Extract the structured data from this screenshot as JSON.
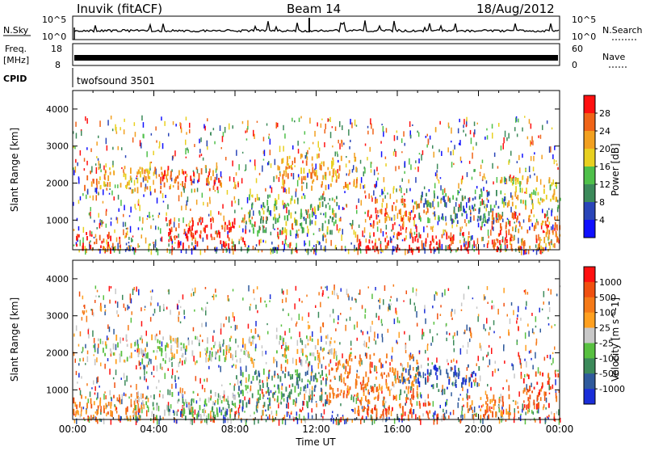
{
  "header": {
    "station": "Inuvik (fitACF)",
    "beam": "Beam 14",
    "date": "18/Aug/2012"
  },
  "panels": {
    "nsky": {
      "label": "N.Sky",
      "tick_top": "10^5",
      "tick_bottom": "10^0",
      "right_label": "N.Search",
      "right_tick_top": "10^5",
      "right_tick_bottom": "10^0"
    },
    "freq": {
      "label_line1": "Freq.",
      "label_line2": "[MHz]",
      "tick_top": "18",
      "tick_bottom": "8",
      "right_label": "Nave",
      "right_tick_top": "60",
      "right_tick_bottom": "0"
    },
    "cpid": {
      "label": "CPID",
      "mode": "twofsound 3501"
    }
  },
  "chart_data": [
    {
      "type": "heatmap",
      "name": "Power",
      "ylabel": "Slant Range [km]",
      "xlabel": "",
      "yticks": [
        "1000",
        "2000",
        "3000",
        "4000"
      ],
      "ylim": [
        200,
        4500
      ],
      "xlim": [
        "00:00",
        "24:00"
      ],
      "colorbar": {
        "label": "Power [dB]",
        "ticks": [
          "4",
          "8",
          "12",
          "16",
          "20",
          "24",
          "28"
        ],
        "colors": [
          "#1010ff",
          "#2a45b8",
          "#3c8a5a",
          "#4fc04a",
          "#e8d020",
          "#f2a020",
          "#f06418",
          "#ff1010"
        ]
      },
      "regions": [
        {
          "t0": 0.0,
          "t1": 2.5,
          "r0": 250,
          "r1": 700,
          "level": 7
        },
        {
          "t0": 0.5,
          "t1": 4.0,
          "r0": 1800,
          "r1": 2500,
          "level": 5
        },
        {
          "t0": 4.5,
          "t1": 8.5,
          "r0": 300,
          "r1": 1100,
          "level": 7
        },
        {
          "t0": 4.0,
          "t1": 7.5,
          "r0": 1800,
          "r1": 2500,
          "level": 6
        },
        {
          "t0": 8.5,
          "t1": 13.0,
          "r0": 700,
          "r1": 1700,
          "level": 3
        },
        {
          "t0": 10.0,
          "t1": 14.0,
          "r0": 1900,
          "r1": 2800,
          "level": 5
        },
        {
          "t0": 14.0,
          "t1": 19.5,
          "r0": 250,
          "r1": 700,
          "level": 7
        },
        {
          "t0": 14.5,
          "t1": 17.5,
          "r0": 900,
          "r1": 1600,
          "level": 6
        },
        {
          "t0": 17.0,
          "t1": 21.0,
          "r0": 1000,
          "r1": 1900,
          "level": 2
        },
        {
          "t0": 20.5,
          "t1": 24.0,
          "r0": 300,
          "r1": 1300,
          "level": 6
        },
        {
          "t0": 21.0,
          "t1": 24.0,
          "r0": 1400,
          "r1": 2200,
          "level": 4
        }
      ]
    },
    {
      "type": "heatmap",
      "name": "Velocity",
      "ylabel": "Slant Range [km]",
      "xlabel": "Time UT",
      "yticks": [
        "1000",
        "2000",
        "3000",
        "4000"
      ],
      "ylim": [
        200,
        4500
      ],
      "xlim": [
        "00:00",
        "24:00"
      ],
      "xticks": [
        "00:00",
        "04:00",
        "08:00",
        "12:00",
        "16:00",
        "20:00",
        "00:00"
      ],
      "colorbar": {
        "label": "Velocity [m s^-1]",
        "ticks": [
          "1000",
          "500",
          "100",
          "25",
          "-25",
          "-100",
          "-500",
          "-1000"
        ],
        "colors": [
          "#1a2ed8",
          "#2f5a9c",
          "#3c8a5a",
          "#58c040",
          "#c8c8c8",
          "#ffa020",
          "#f57a18",
          "#f05010",
          "#ff1010"
        ]
      },
      "regions": [
        {
          "t0": 0.0,
          "t1": 3.5,
          "r0": 250,
          "r1": 900,
          "level": 6
        },
        {
          "t0": 1.0,
          "t1": 9.0,
          "r0": 1800,
          "r1": 2500,
          "level": 4
        },
        {
          "t0": 3.0,
          "t1": 8.0,
          "r0": 300,
          "r1": 1000,
          "level": 3
        },
        {
          "t0": 8.0,
          "t1": 12.5,
          "r0": 600,
          "r1": 1600,
          "level": 2
        },
        {
          "t0": 10.0,
          "t1": 13.0,
          "r0": 1800,
          "r1": 2500,
          "level": 4
        },
        {
          "t0": 12.5,
          "t1": 17.0,
          "r0": 700,
          "r1": 2000,
          "level": 6
        },
        {
          "t0": 14.0,
          "t1": 18.0,
          "r0": 300,
          "r1": 700,
          "level": 7
        },
        {
          "t0": 16.0,
          "t1": 20.0,
          "r0": 1000,
          "r1": 1700,
          "level": 1
        },
        {
          "t0": 19.0,
          "t1": 22.0,
          "r0": 300,
          "r1": 900,
          "level": 6
        },
        {
          "t0": 22.0,
          "t1": 24.0,
          "r0": 600,
          "r1": 1500,
          "level": 7
        }
      ]
    }
  ]
}
